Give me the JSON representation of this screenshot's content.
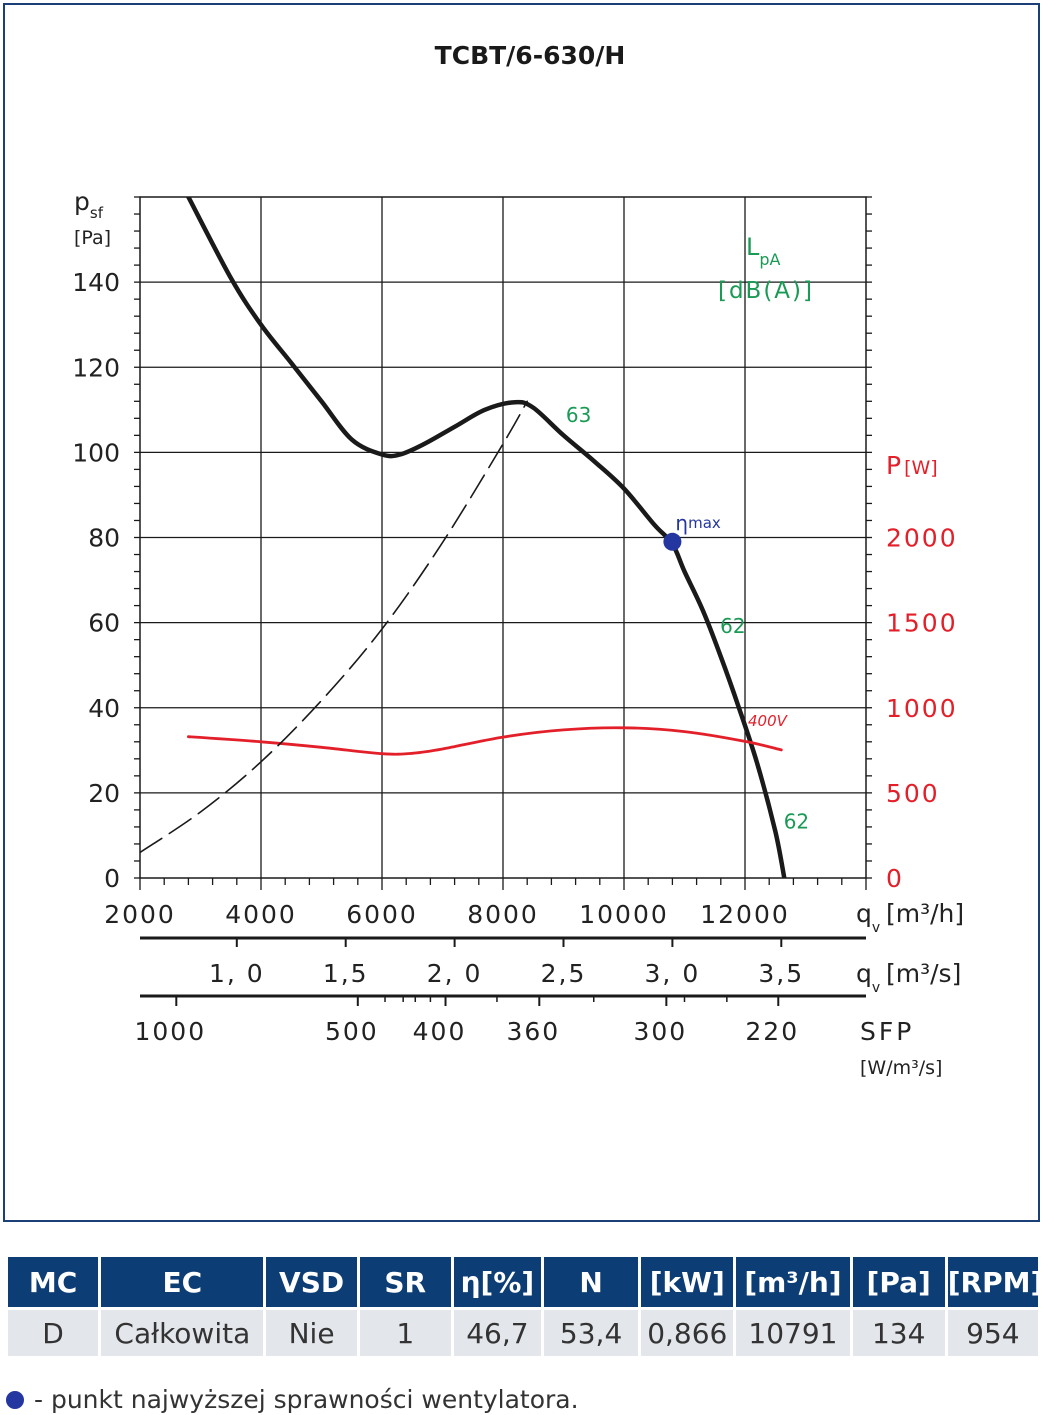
{
  "chart_data": {
    "type": "line",
    "title": "TCBT/6-630/H",
    "y_left_label": "p",
    "y_left_label_sub": "sf",
    "y_left_unit": "[Pa]",
    "y_left_ticks": [
      "0",
      "20",
      "40",
      "60",
      "80",
      "100",
      "120",
      "140"
    ],
    "y_left_range": [
      0,
      160
    ],
    "y_right_label": "P",
    "y_right_unit": "[W]",
    "y_right_ticks": [
      "0",
      "500",
      "1000",
      "1500",
      "2000"
    ],
    "noise_label": "L",
    "noise_label_sub": "pA",
    "noise_unit": "[dB(A)]",
    "x_range": [
      2000,
      14000
    ],
    "x_axis_label": "q",
    "x_axis_label_sub": "v",
    "x_axis_unit": "[m³/h]",
    "x_ticks": [
      "2000",
      "4000",
      "6000",
      "8000",
      "10000",
      "12000"
    ],
    "x2_axis_unit": "[m³/s]",
    "x2_ticks": [
      "1, 0",
      "1,5",
      "2, 0",
      "2,5",
      "3, 0",
      "3,5"
    ],
    "x2_values": [
      1.0,
      1.5,
      2.0,
      2.5,
      3.0,
      3.5
    ],
    "x3_axis_label": "SFP",
    "x3_axis_unit": "[W/m³/s]",
    "x3_ticks": [
      "1000",
      "500",
      "400",
      "360",
      "300",
      "220"
    ],
    "x3_values": [
      1000,
      500,
      400,
      360,
      300,
      220
    ],
    "series": [
      {
        "name": "",
        "color": "#1a1a1a",
        "x": [
          2800,
          3500,
          4000,
          4500,
          5000,
          5500,
          6000,
          6300,
          6700,
          7200,
          7700,
          8200,
          8500,
          9000,
          9500,
          10000,
          10500,
          10800,
          11000,
          11300,
          11600,
          11900,
          12200,
          12500,
          12650
        ],
        "y": [
          160,
          141,
          130,
          121,
          112,
          103,
          99.5,
          99.5,
          102,
          106,
          110,
          111.8,
          110.5,
          104,
          98,
          91.5,
          83,
          78.5,
          72,
          63,
          52,
          40,
          27,
          11,
          0
        ]
      },
      {
        "name": "400V",
        "color": "#e3202a",
        "x": [
          2800,
          4000,
          5000,
          6000,
          6500,
          7000,
          8000,
          9000,
          10000,
          11000,
          12000,
          12600
        ],
        "y": [
          33.2,
          32,
          30.7,
          29.2,
          29.3,
          30.3,
          33.1,
          34.8,
          35.3,
          34.4,
          32.1,
          30.1
        ]
      },
      {
        "name": "",
        "style": "dashed",
        "color": "#1a1a1a",
        "x": [
          2000,
          3000,
          4000,
          5000,
          6000,
          7000,
          8000,
          8400
        ],
        "y": [
          6,
          15.5,
          27.3,
          41.7,
          58.5,
          78.8,
          102,
          112
        ]
      }
    ],
    "noise_values": [
      {
        "text": "63",
        "x": 9250,
        "y": 109
      },
      {
        "text": "62",
        "x": 11800,
        "y": 59.5
      },
      {
        "text": "62",
        "x": 12850,
        "y": 13.5
      }
    ],
    "eta_max": {
      "label": "η",
      "sub": "max",
      "x": 10800,
      "y": 79
    },
    "power_curve_label": "400V"
  },
  "table": {
    "headers": [
      "MC",
      "EC",
      "VSD",
      "SR",
      "η[%]",
      "N",
      "[kW]",
      "[m³/h]",
      "[Pa]",
      "[RPM]"
    ],
    "row": [
      "D",
      "Całkowita",
      "Nie",
      "1",
      "46,7",
      "53,4",
      "0,866",
      "10791",
      "134",
      "954"
    ]
  },
  "footnote": "- punkt najwyższej sprawności wentylatora.",
  "colors": {
    "frame": "#1b3f77",
    "header_bg": "#0d3d75",
    "row_bg": "#e3e6eb",
    "noise": "#1a9a55",
    "power": "#e3202a",
    "eta": "#2436a0"
  }
}
